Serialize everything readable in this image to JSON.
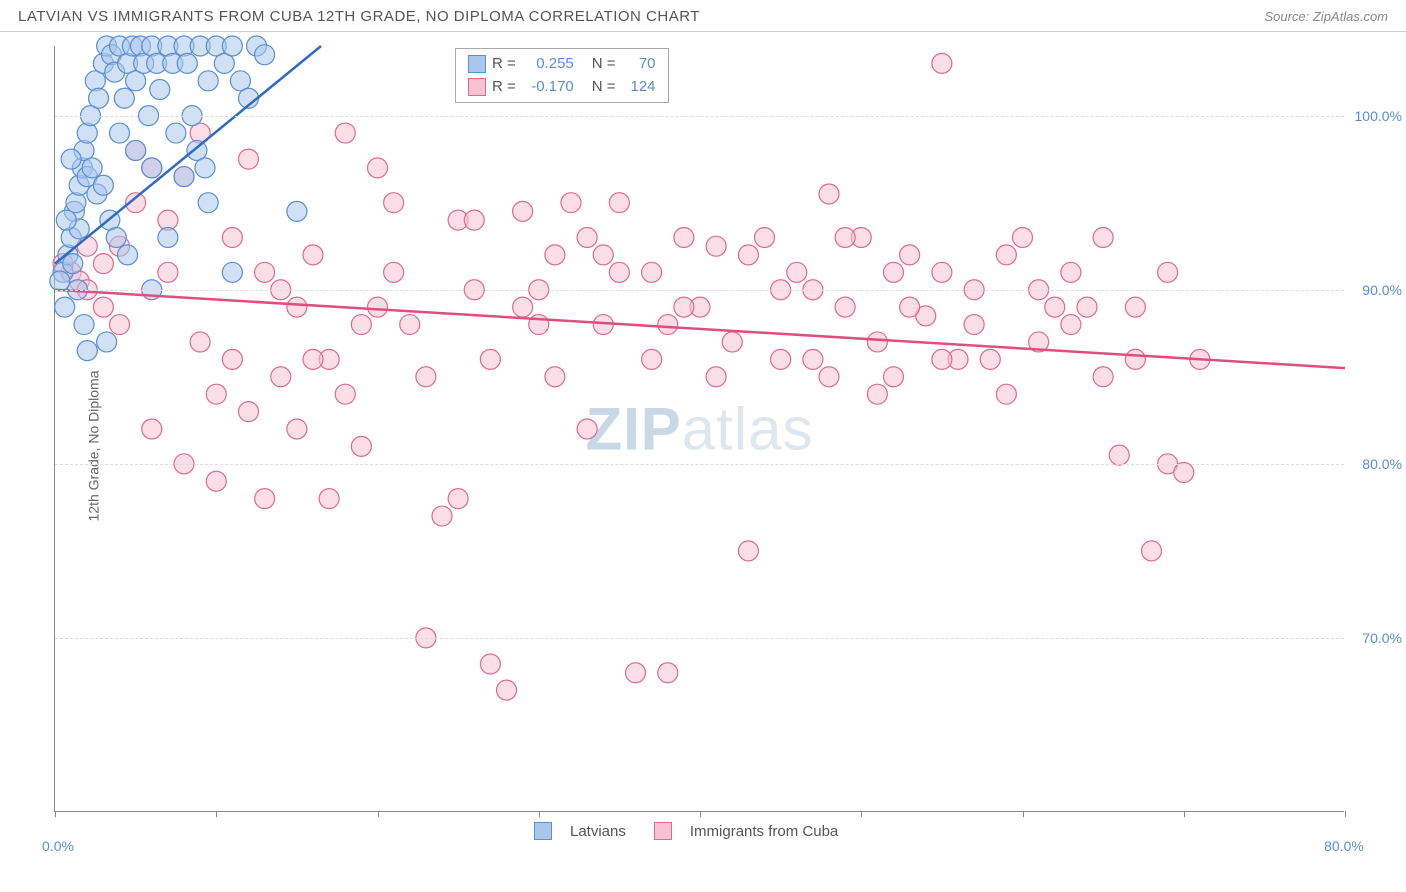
{
  "header": {
    "title": "LATVIAN VS IMMIGRANTS FROM CUBA 12TH GRADE, NO DIPLOMA CORRELATION CHART",
    "source": "Source: ZipAtlas.com"
  },
  "chart": {
    "type": "scatter",
    "ylabel": "12th Grade, No Diploma",
    "xlim": [
      0,
      80
    ],
    "ylim": [
      60,
      104
    ],
    "ytick_labels": [
      "70.0%",
      "80.0%",
      "90.0%",
      "100.0%"
    ],
    "ytick_values": [
      70,
      80,
      90,
      100
    ],
    "xtick_values": [
      0,
      10,
      20,
      30,
      40,
      50,
      60,
      70,
      80
    ],
    "xtick_label_left": "0.0%",
    "xtick_label_right": "80.0%",
    "grid_color": "#dddddd",
    "axis_color": "#888888",
    "label_color": "#5b8dd6",
    "marker_radius": 10,
    "series": {
      "latvians": {
        "label": "Latvians",
        "fill": "#a9c7ec",
        "stroke": "#5a8fd1",
        "fill_opacity": 0.55,
        "R": "0.255",
        "N": "70",
        "trend": {
          "x1": 0,
          "y1": 91.5,
          "x2": 16.5,
          "y2": 104,
          "stroke": "#2f6bc2",
          "width": 2.5
        },
        "points": [
          [
            0.5,
            91
          ],
          [
            0.8,
            92
          ],
          [
            1,
            93
          ],
          [
            1.2,
            94.5
          ],
          [
            1.3,
            95
          ],
          [
            1.5,
            96
          ],
          [
            1.7,
            97
          ],
          [
            1.8,
            98
          ],
          [
            2,
            99
          ],
          [
            2.2,
            100
          ],
          [
            2.5,
            102
          ],
          [
            2.7,
            101
          ],
          [
            3,
            103
          ],
          [
            3.2,
            104
          ],
          [
            3.5,
            103.5
          ],
          [
            3.7,
            102.5
          ],
          [
            4,
            104
          ],
          [
            4.3,
            101
          ],
          [
            4.5,
            103
          ],
          [
            4.8,
            104
          ],
          [
            5,
            102
          ],
          [
            5.3,
            104
          ],
          [
            5.5,
            103
          ],
          [
            5.8,
            100
          ],
          [
            6,
            104
          ],
          [
            6.3,
            103
          ],
          [
            6.5,
            101.5
          ],
          [
            7,
            104
          ],
          [
            7.3,
            103
          ],
          [
            7.5,
            99
          ],
          [
            8,
            104
          ],
          [
            8.2,
            103
          ],
          [
            8.5,
            100
          ],
          [
            8.8,
            98
          ],
          [
            9,
            104
          ],
          [
            9.3,
            97
          ],
          [
            9.5,
            95
          ],
          [
            1,
            97.5
          ],
          [
            1.5,
            93.5
          ],
          [
            2,
            96.5
          ],
          [
            0.7,
            94
          ],
          [
            2.3,
            97
          ],
          [
            2.6,
            95.5
          ],
          [
            3,
            96
          ],
          [
            3.4,
            94
          ],
          [
            3.8,
            93
          ],
          [
            0.3,
            90.5
          ],
          [
            0.6,
            89
          ],
          [
            1.1,
            91.5
          ],
          [
            1.4,
            90
          ],
          [
            10,
            104
          ],
          [
            10.5,
            103
          ],
          [
            11,
            104
          ],
          [
            11.5,
            102
          ],
          [
            12,
            101
          ],
          [
            12.5,
            104
          ],
          [
            13,
            103.5
          ],
          [
            4,
            99
          ],
          [
            5,
            98
          ],
          [
            6,
            97
          ],
          [
            2,
            86.5
          ],
          [
            11,
            91
          ],
          [
            1.8,
            88
          ],
          [
            3.2,
            87
          ],
          [
            15,
            94.5
          ],
          [
            7,
            93
          ],
          [
            4.5,
            92
          ],
          [
            6,
            90
          ],
          [
            8,
            96.5
          ],
          [
            9.5,
            102
          ]
        ]
      },
      "cuba": {
        "label": "Immigrants from Cuba",
        "fill": "#f7c3d1",
        "stroke": "#e06a8c",
        "fill_opacity": 0.55,
        "R": "-0.170",
        "N": "124",
        "trend": {
          "x1": 0,
          "y1": 90,
          "x2": 80,
          "y2": 85.5,
          "stroke": "#e14e7c",
          "width": 2.5
        },
        "points": [
          [
            1,
            91
          ],
          [
            0.5,
            91.5
          ],
          [
            1.5,
            90.5
          ],
          [
            2,
            90
          ],
          [
            3,
            89
          ],
          [
            4,
            88
          ],
          [
            5,
            95
          ],
          [
            6,
            97
          ],
          [
            7,
            94
          ],
          [
            8,
            96.5
          ],
          [
            9,
            99
          ],
          [
            10,
            84
          ],
          [
            11,
            93
          ],
          [
            12,
            97.5
          ],
          [
            13,
            78
          ],
          [
            14,
            85
          ],
          [
            15,
            89
          ],
          [
            16,
            92
          ],
          [
            17,
            86
          ],
          [
            18,
            99
          ],
          [
            19,
            81
          ],
          [
            20,
            97
          ],
          [
            21,
            95
          ],
          [
            22,
            88
          ],
          [
            23,
            85
          ],
          [
            24,
            77
          ],
          [
            25,
            94
          ],
          [
            26,
            90
          ],
          [
            27,
            68.5
          ],
          [
            28,
            67
          ],
          [
            29,
            94.5
          ],
          [
            30,
            88
          ],
          [
            31,
            92
          ],
          [
            32,
            95
          ],
          [
            33,
            93
          ],
          [
            34,
            88
          ],
          [
            35,
            91
          ],
          [
            36,
            68
          ],
          [
            37,
            91
          ],
          [
            38,
            68
          ],
          [
            39,
            93
          ],
          [
            40,
            89
          ],
          [
            41,
            92.5
          ],
          [
            42,
            87
          ],
          [
            43,
            75
          ],
          [
            44,
            93
          ],
          [
            45,
            90
          ],
          [
            46,
            91
          ],
          [
            47,
            86
          ],
          [
            48,
            95.5
          ],
          [
            49,
            89
          ],
          [
            50,
            93
          ],
          [
            51,
            87
          ],
          [
            52,
            85
          ],
          [
            53,
            92
          ],
          [
            54,
            88.5
          ],
          [
            55,
            91
          ],
          [
            56,
            86
          ],
          [
            57,
            90
          ],
          [
            58,
            86
          ],
          [
            59,
            92
          ],
          [
            60,
            93
          ],
          [
            61,
            90
          ],
          [
            62,
            89
          ],
          [
            63,
            91
          ],
          [
            64,
            89
          ],
          [
            65,
            93
          ],
          [
            66,
            80.5
          ],
          [
            67,
            86
          ],
          [
            68,
            75
          ],
          [
            69,
            80
          ],
          [
            70,
            79.5
          ],
          [
            71,
            86
          ],
          [
            55,
            103
          ],
          [
            12,
            83
          ],
          [
            4,
            92.5
          ],
          [
            6,
            82
          ],
          [
            8,
            80
          ],
          [
            10,
            79
          ],
          [
            14,
            90
          ],
          [
            16,
            86
          ],
          [
            18,
            84
          ],
          [
            20,
            89
          ],
          [
            2,
            92.5
          ],
          [
            3,
            91.5
          ],
          [
            5,
            98
          ],
          [
            7,
            91
          ],
          [
            9,
            87
          ],
          [
            11,
            86
          ],
          [
            13,
            91
          ],
          [
            15,
            82
          ],
          [
            17,
            78
          ],
          [
            19,
            88
          ],
          [
            21,
            91
          ],
          [
            23,
            70
          ],
          [
            25,
            78
          ],
          [
            27,
            86
          ],
          [
            29,
            89
          ],
          [
            31,
            85
          ],
          [
            33,
            82
          ],
          [
            35,
            95
          ],
          [
            37,
            86
          ],
          [
            39,
            89
          ],
          [
            41,
            85
          ],
          [
            43,
            92
          ],
          [
            45,
            86
          ],
          [
            47,
            90
          ],
          [
            49,
            93
          ],
          [
            51,
            84
          ],
          [
            53,
            89
          ],
          [
            55,
            86
          ],
          [
            57,
            88
          ],
          [
            59,
            84
          ],
          [
            61,
            87
          ],
          [
            63,
            88
          ],
          [
            65,
            85
          ],
          [
            67,
            89
          ],
          [
            69,
            91
          ],
          [
            48,
            85
          ],
          [
            52,
            91
          ],
          [
            26,
            94
          ],
          [
            30,
            90
          ],
          [
            34,
            92
          ],
          [
            38,
            88
          ]
        ]
      }
    },
    "watermark": {
      "zip": "ZIP",
      "atlas": "atlas"
    }
  },
  "legend_stats": {
    "R_label": "R =",
    "N_label": "N ="
  }
}
